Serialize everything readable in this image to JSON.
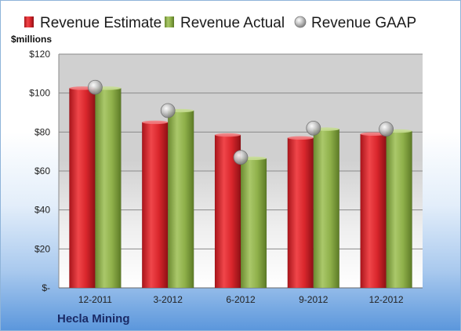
{
  "chart_data": {
    "type": "bar",
    "title": "",
    "xlabel": "",
    "ylabel": "$millions",
    "company": "Hecla Mining",
    "categories": [
      "12-2011",
      "3-2012",
      "6-2012",
      "9-2012",
      "12-2012"
    ],
    "series": [
      {
        "name": "Revenue Estimate",
        "kind": "bar",
        "color": "#d32027",
        "values": [
          102.5,
          85,
          78.5,
          77,
          79
        ]
      },
      {
        "name": "Revenue Actual",
        "kind": "bar",
        "color": "#8fb04a",
        "values": [
          102.5,
          91,
          66.5,
          81.5,
          80.5
        ]
      },
      {
        "name": "Revenue GAAP",
        "kind": "marker",
        "color": "#b8b8b8",
        "values": [
          103,
          91,
          67,
          82,
          81.5
        ]
      }
    ],
    "ylim": [
      0,
      120
    ],
    "yticks": [
      0,
      20,
      40,
      60,
      80,
      100,
      120
    ],
    "ytick_labels": [
      "$-",
      "$20",
      "$40",
      "$60",
      "$80",
      "$100",
      "$120"
    ],
    "grid": true,
    "legend_position": "top"
  }
}
